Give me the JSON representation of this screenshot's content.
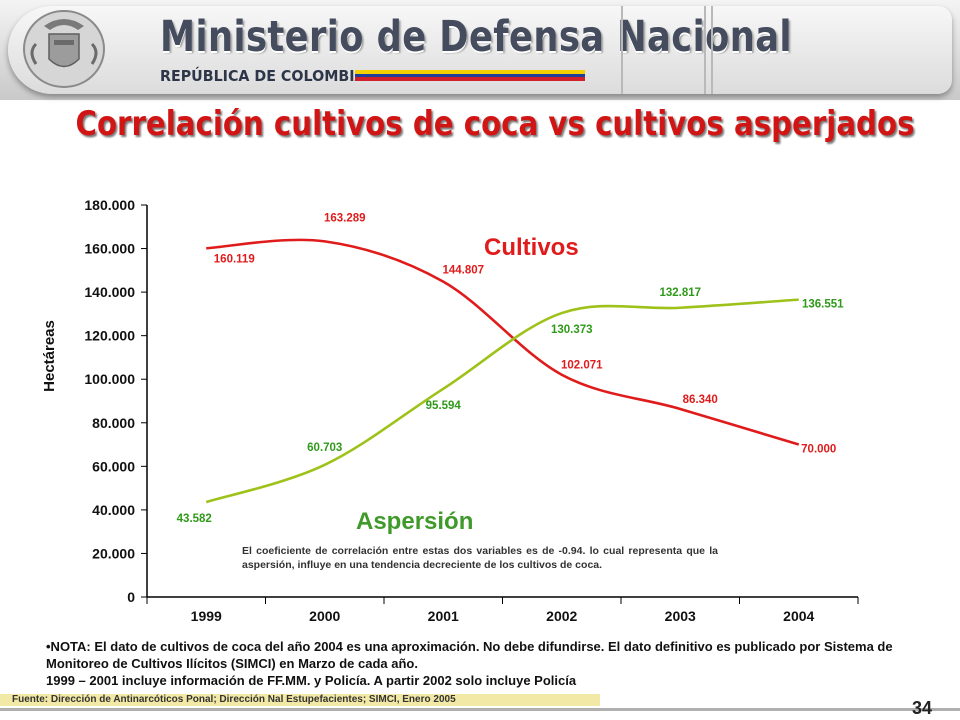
{
  "header": {
    "ministry": "Ministerio de Defensa Nacional",
    "republic": "REPÚBLICA DE COLOMBIA"
  },
  "slide": {
    "title": "Correlación cultivos de coca vs cultivos asperjados",
    "page_number": "34"
  },
  "chart_data": {
    "type": "line",
    "categories": [
      "1999",
      "2000",
      "2001",
      "2002",
      "2003",
      "2004"
    ],
    "ylabel": "Hectáreas",
    "ylim": [
      0,
      180000
    ],
    "yticks": [
      0,
      20000,
      40000,
      60000,
      80000,
      100000,
      120000,
      140000,
      160000,
      180000
    ],
    "ytick_labels": [
      "0",
      "20.000",
      "40.000",
      "60.000",
      "80.000",
      "100.000",
      "120.000",
      "140.000",
      "160.000",
      "180.000"
    ],
    "grid": false,
    "series": [
      {
        "name": "Cultivos",
        "color": "#e01b1b",
        "values": [
          160119,
          163289,
          144807,
          102071,
          86340,
          70000
        ],
        "labels": [
          "160.119",
          "163.289",
          "144.807",
          "102.071",
          "86.340",
          "70.000"
        ]
      },
      {
        "name": "Aspersión",
        "color": "#9ec21a",
        "values": [
          43582,
          60703,
          95594,
          130373,
          132817,
          136551
        ],
        "labels": [
          "43.582",
          "60.703",
          "95.594",
          "130.373",
          "132.817",
          "136.551"
        ]
      }
    ],
    "annotation": "El coeficiente de correlación entre estas dos variables es de -0.94. lo cual representa que la aspersión, influye en una tendencia decreciente de los cultivos de coca."
  },
  "note": {
    "line1": "•NOTA: El dato de cultivos de coca del año 2004 es una aproximación. No debe difundirse. El dato definitivo  es publicado por Sistema de Monitoreo de Cultivos Ilícitos (SIMCI)  en Marzo de cada año.",
    "line2": "1999 – 2001 incluye información de FF.MM. y Policía. A partir 2002 solo incluye Policía"
  },
  "source": "Fuente: Dirección de Antinarcóticos Ponal; Dirección Nal Estupefacientes;  SIMCI, Enero 2005",
  "colors": {
    "title_red": "#d11414",
    "flag_yellow": "#f5d000",
    "flag_blue": "#1f3f9a",
    "flag_red": "#d0202a"
  }
}
